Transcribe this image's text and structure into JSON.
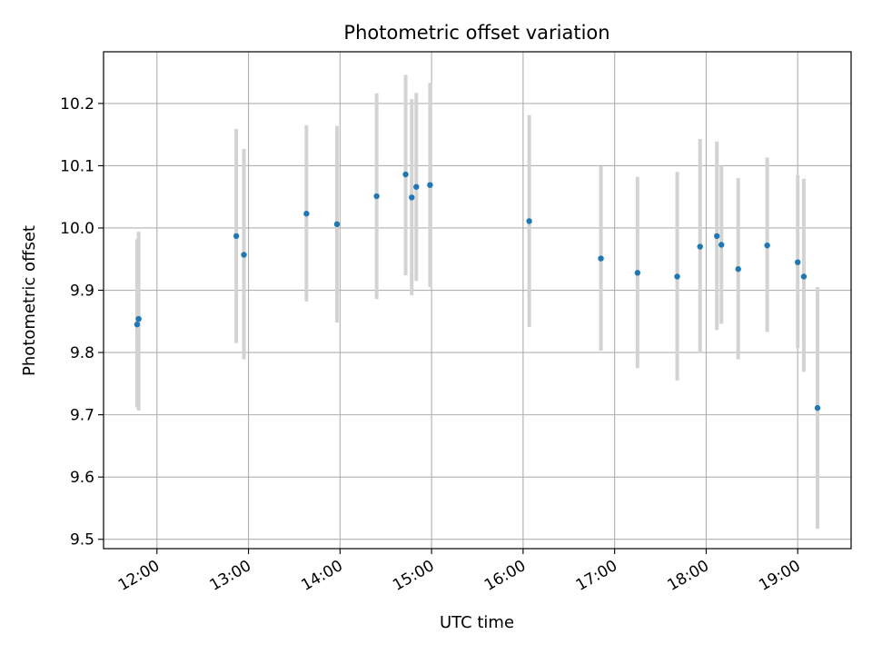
{
  "chart_data": {
    "type": "scatter",
    "title": "Photometric offset variation",
    "xlabel": "UTC time",
    "ylabel": "Photometric offset",
    "grid": true,
    "x_tick_labels": [
      "12:00",
      "13:00",
      "14:00",
      "15:00",
      "16:00",
      "17:00",
      "18:00",
      "19:00"
    ],
    "y_tick_labels": [
      "9.5",
      "9.6",
      "9.7",
      "9.8",
      "9.9",
      "10.0",
      "10.1",
      "10.2"
    ],
    "xlim": [
      "11:25",
      "19:35"
    ],
    "ylim": [
      9.485,
      10.283
    ],
    "colors": {
      "point": "#1f77b4",
      "errorbar": "#d3d3d3",
      "grid": "#b0b0b0",
      "axes": "#000000"
    },
    "points": [
      {
        "x": "11:47",
        "y": 9.845,
        "ylo": 9.712,
        "yhi": 9.982
      },
      {
        "x": "11:48",
        "y": 9.854,
        "ylo": 9.707,
        "yhi": 9.994
      },
      {
        "x": "12:52",
        "y": 9.987,
        "ylo": 9.815,
        "yhi": 10.159
      },
      {
        "x": "12:57",
        "y": 9.957,
        "ylo": 9.789,
        "yhi": 10.127
      },
      {
        "x": "13:38",
        "y": 10.023,
        "ylo": 9.882,
        "yhi": 10.165
      },
      {
        "x": "13:58",
        "y": 10.006,
        "ylo": 9.848,
        "yhi": 10.164
      },
      {
        "x": "14:24",
        "y": 10.051,
        "ylo": 9.886,
        "yhi": 10.216
      },
      {
        "x": "14:43",
        "y": 10.086,
        "ylo": 9.924,
        "yhi": 10.246
      },
      {
        "x": "14:47",
        "y": 10.049,
        "ylo": 9.892,
        "yhi": 10.207
      },
      {
        "x": "14:50",
        "y": 10.066,
        "ylo": 9.915,
        "yhi": 10.217
      },
      {
        "x": "14:59",
        "y": 10.069,
        "ylo": 9.905,
        "yhi": 10.233
      },
      {
        "x": "16:04",
        "y": 10.011,
        "ylo": 9.841,
        "yhi": 10.181
      },
      {
        "x": "16:51",
        "y": 9.951,
        "ylo": 9.803,
        "yhi": 10.099
      },
      {
        "x": "17:15",
        "y": 9.928,
        "ylo": 9.775,
        "yhi": 10.082
      },
      {
        "x": "17:41",
        "y": 9.922,
        "ylo": 9.755,
        "yhi": 10.09
      },
      {
        "x": "17:56",
        "y": 9.97,
        "ylo": 9.799,
        "yhi": 10.143
      },
      {
        "x": "18:07",
        "y": 9.987,
        "ylo": 9.836,
        "yhi": 10.139
      },
      {
        "x": "18:10",
        "y": 9.973,
        "ylo": 9.846,
        "yhi": 10.1
      },
      {
        "x": "18:21",
        "y": 9.934,
        "ylo": 9.789,
        "yhi": 10.08
      },
      {
        "x": "18:40",
        "y": 9.972,
        "ylo": 9.833,
        "yhi": 10.113
      },
      {
        "x": "19:00",
        "y": 9.945,
        "ylo": 9.807,
        "yhi": 10.085
      },
      {
        "x": "19:04",
        "y": 9.922,
        "ylo": 9.769,
        "yhi": 10.079
      },
      {
        "x": "19:13",
        "y": 9.711,
        "ylo": 9.517,
        "yhi": 9.905
      }
    ]
  }
}
